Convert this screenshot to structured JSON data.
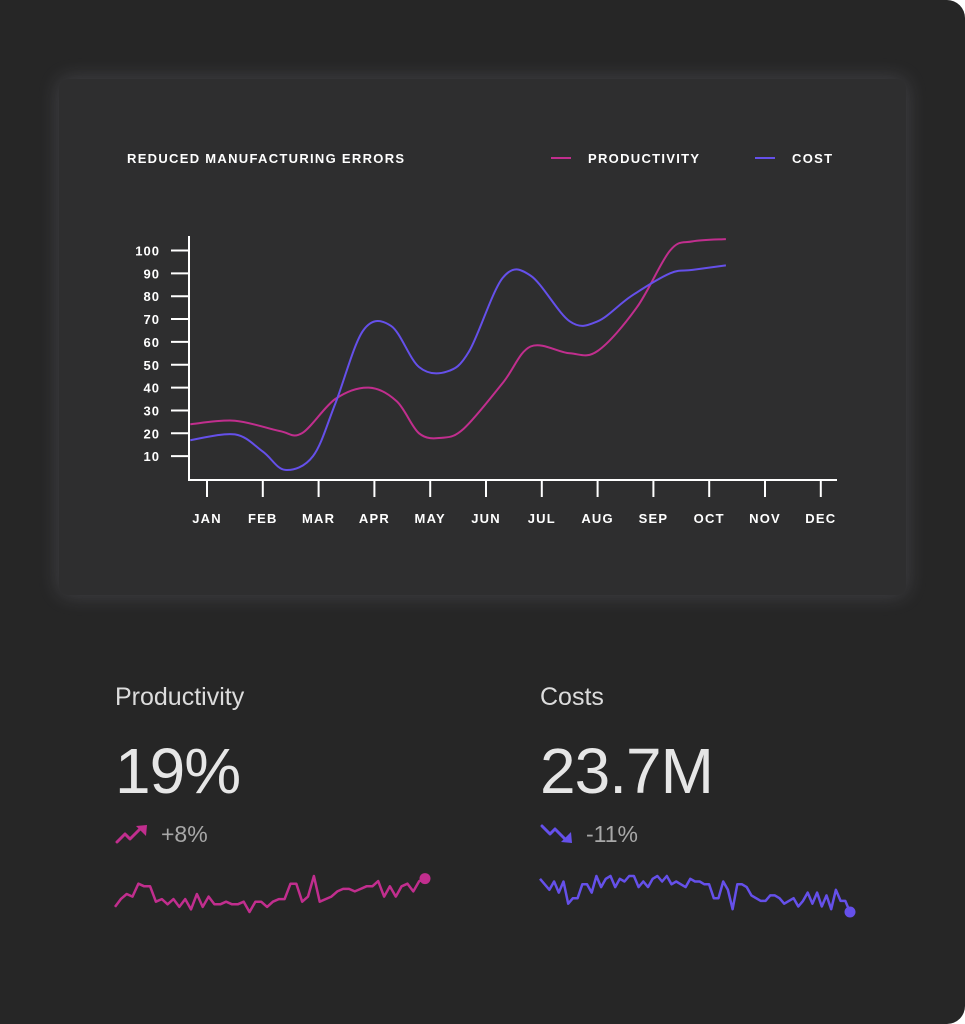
{
  "colors": {
    "background": "#262626",
    "card": "#2e2e2f",
    "productivity": "#c12e8e",
    "cost": "#6550ea",
    "axis": "#ffffff",
    "text": "#e6e6e6"
  },
  "chart_data": {
    "type": "line",
    "title": "REDUCED MANUFACTURING ERRORS",
    "categories": [
      "JAN",
      "FEB",
      "MAR",
      "APR",
      "MAY",
      "JUN",
      "JUL",
      "AUG",
      "SEP",
      "OCT",
      "NOV",
      "DEC"
    ],
    "y_ticks": [
      10,
      20,
      30,
      40,
      50,
      60,
      70,
      80,
      90,
      100
    ],
    "ylim": [
      0,
      105
    ],
    "grid": false,
    "legend_position": "top-right",
    "series": [
      {
        "name": "PRODUCTIVITY",
        "color": "#c12e8e",
        "points": [
          [
            -0.3,
            24
          ],
          [
            0.5,
            25.5
          ],
          [
            1.3,
            21
          ],
          [
            1.7,
            20
          ],
          [
            2.3,
            35
          ],
          [
            2.9,
            40
          ],
          [
            3.4,
            34
          ],
          [
            3.8,
            20
          ],
          [
            4.2,
            18
          ],
          [
            4.6,
            22
          ],
          [
            5.3,
            42
          ],
          [
            5.8,
            58
          ],
          [
            6.5,
            55
          ],
          [
            7.0,
            56
          ],
          [
            7.7,
            75
          ],
          [
            8.3,
            100
          ],
          [
            8.7,
            104
          ],
          [
            9.3,
            105
          ]
        ]
      },
      {
        "name": "COST",
        "color": "#6550ea",
        "points": [
          [
            -0.3,
            17
          ],
          [
            0.5,
            19.5
          ],
          [
            1.0,
            12
          ],
          [
            1.4,
            4
          ],
          [
            1.9,
            10
          ],
          [
            2.3,
            33
          ],
          [
            2.8,
            65
          ],
          [
            3.3,
            67
          ],
          [
            3.8,
            49
          ],
          [
            4.3,
            47
          ],
          [
            4.7,
            56
          ],
          [
            5.3,
            88
          ],
          [
            5.8,
            89
          ],
          [
            6.5,
            69
          ],
          [
            7.0,
            69
          ],
          [
            7.6,
            80
          ],
          [
            8.3,
            90
          ],
          [
            8.7,
            91.5
          ],
          [
            9.3,
            93.5
          ]
        ]
      }
    ]
  },
  "stats": {
    "productivity": {
      "label": "Productivity",
      "value": "19%",
      "change": "+8%",
      "trend_icon": "trending-up-icon",
      "color": "#c12e8e",
      "sparkline": [
        3,
        6,
        8,
        7,
        12,
        11,
        11,
        5,
        6,
        4,
        6,
        3,
        6,
        2,
        8,
        3,
        7,
        4,
        4,
        5,
        4,
        4,
        5,
        1,
        5,
        5,
        3,
        5,
        6,
        6,
        12,
        12,
        5,
        7,
        15,
        5,
        6,
        7,
        9,
        10,
        10,
        9,
        10,
        11,
        11,
        13,
        7,
        11,
        7,
        11,
        12,
        9,
        13,
        14
      ]
    },
    "costs": {
      "label": "Costs",
      "value": "23.7M",
      "change": "-11%",
      "trend_icon": "trending-down-icon",
      "color": "#6550ea",
      "sparkline": [
        12,
        10,
        8,
        11,
        7,
        11,
        3,
        5,
        5,
        10,
        10,
        7,
        13,
        9,
        12,
        13,
        9,
        12,
        11,
        13,
        13,
        9,
        11,
        9,
        12,
        13,
        11,
        13,
        10,
        11,
        10,
        9,
        12,
        11,
        11,
        10,
        10,
        5,
        5,
        11,
        8,
        1,
        10,
        10,
        9,
        6,
        5,
        4,
        4,
        6,
        6,
        5,
        3,
        4,
        5,
        2,
        4,
        7,
        3,
        7,
        2,
        6,
        1,
        8,
        4,
        4,
        0
      ]
    }
  }
}
